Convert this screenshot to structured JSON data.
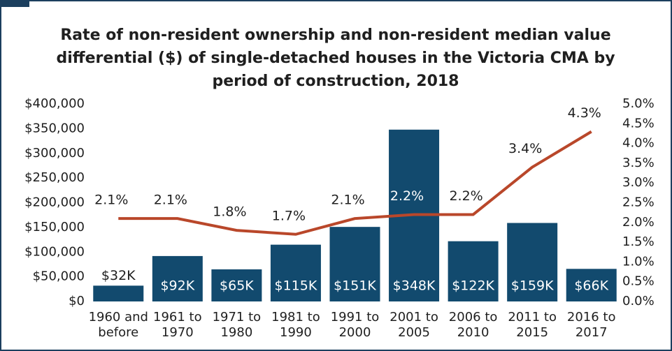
{
  "chart_data": {
    "type": "bar",
    "title": "Rate of non-resident ownership and non-resident median value differential ($) of single-detached houses in the Victoria CMA by period of construction, 2018",
    "categories": [
      [
        "1960 and",
        "before"
      ],
      [
        "1961 to",
        "1970"
      ],
      [
        "1971 to",
        "1980"
      ],
      [
        "1981 to",
        "1990"
      ],
      [
        "1991 to",
        "2000"
      ],
      [
        "2001 to",
        "2005"
      ],
      [
        "2006 to",
        "2010"
      ],
      [
        "2011 to",
        "2015"
      ],
      [
        "2016 to",
        "2017"
      ]
    ],
    "series": [
      {
        "type": "bar",
        "color": "#124a6e",
        "values": [
          32000,
          92000,
          65000,
          115000,
          151000,
          348000,
          122000,
          159000,
          66000
        ],
        "value_labels": [
          "$32K",
          "$92K",
          "$65K",
          "$115K",
          "$151K",
          "$348K",
          "$122K",
          "$159K",
          "$66K"
        ]
      },
      {
        "type": "line",
        "axis": "y2",
        "color": "#b9472a",
        "values": [
          2.1,
          2.1,
          1.8,
          1.7,
          2.1,
          2.2,
          2.2,
          3.4,
          4.3
        ],
        "value_labels": [
          "2.1%",
          "2.1%",
          "1.8%",
          "1.7%",
          "2.1%",
          "2.2%",
          "2.2%",
          "3.4%",
          "4.3%"
        ]
      }
    ],
    "ylim": [
      0,
      400000
    ],
    "yticks": [
      {
        "value": 0,
        "label": "$0"
      },
      {
        "value": 50000,
        "label": "$50,000"
      },
      {
        "value": 100000,
        "label": "$100,000"
      },
      {
        "value": 150000,
        "label": "$150,000"
      },
      {
        "value": 200000,
        "label": "$200,000"
      },
      {
        "value": 250000,
        "label": "$250,000"
      },
      {
        "value": 300000,
        "label": "$300,000"
      },
      {
        "value": 350000,
        "label": "$350,000"
      },
      {
        "value": 400000,
        "label": "$400,000"
      }
    ],
    "y2lim": [
      0,
      5
    ],
    "y2ticks": [
      {
        "value": 0,
        "label": "0.0%"
      },
      {
        "value": 0.5,
        "label": "0.5%"
      },
      {
        "value": 1,
        "label": "1.0%"
      },
      {
        "value": 1.5,
        "label": "1.5%"
      },
      {
        "value": 2,
        "label": "2.0%"
      },
      {
        "value": 2.5,
        "label": "2.5%"
      },
      {
        "value": 3,
        "label": "3.0%"
      },
      {
        "value": 3.5,
        "label": "3.5%"
      },
      {
        "value": 4,
        "label": "4.0%"
      },
      {
        "value": 4.5,
        "label": "4.5%"
      },
      {
        "value": 5,
        "label": "5.0%"
      }
    ]
  }
}
